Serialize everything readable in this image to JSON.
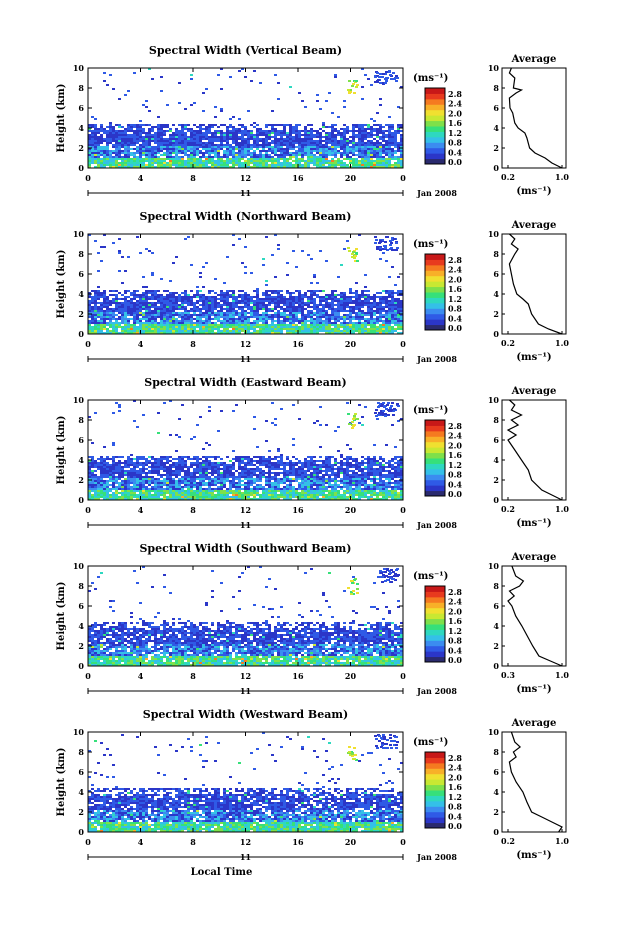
{
  "colors": {
    "scale": [
      "#2a2a6e",
      "#2b36c8",
      "#2f5ae6",
      "#3b8cf0",
      "#34c0e8",
      "#2ed8c0",
      "#36e07a",
      "#7ee04a",
      "#c8e832",
      "#f0e030",
      "#f8b028",
      "#f57a20",
      "#e83a1e",
      "#c81818"
    ]
  },
  "chart_data": [
    {
      "type": "heatmap",
      "title": "Spectral Width (Vertical Beam)",
      "ylabel": "Height (km)",
      "ylim": [
        0,
        10
      ],
      "yticks": [
        "0",
        "2",
        "4",
        "6",
        "8",
        "10"
      ],
      "xlim": [
        0,
        24
      ],
      "xticks": [
        "0",
        "4",
        "8",
        "12",
        "16",
        "20",
        "0"
      ],
      "day_label": "11",
      "date_label": "Jan 2008",
      "colorbar": {
        "unit": "(ms⁻¹)",
        "ticks": [
          "0.0",
          "0.4",
          "0.8",
          "1.2",
          "1.6",
          "2.0",
          "2.4",
          "2.8"
        ],
        "range": [
          0,
          2.8
        ]
      },
      "average": {
        "title": "Average",
        "xlabel": "(ms⁻¹)",
        "xticks": [
          "0.2",
          "1.0"
        ],
        "xlim": [
          0.2,
          1.0
        ],
        "profile": [
          [
            1.0,
            0
          ],
          [
            0.85,
            0.5
          ],
          [
            0.75,
            1
          ],
          [
            0.6,
            1.5
          ],
          [
            0.52,
            2
          ],
          [
            0.48,
            3
          ],
          [
            0.45,
            3.5
          ],
          [
            0.35,
            4
          ],
          [
            0.3,
            4.5
          ],
          [
            0.27,
            5.5
          ],
          [
            0.23,
            6
          ],
          [
            0.22,
            7
          ],
          [
            0.32,
            7.5
          ],
          [
            0.4,
            7.8
          ],
          [
            0.28,
            8
          ],
          [
            0.3,
            9
          ],
          [
            0.22,
            9.5
          ],
          [
            0.25,
            10
          ]
        ]
      },
      "xlabel": ""
    },
    {
      "type": "heatmap",
      "title": "Spectral Width (Northward Beam)",
      "ylabel": "Height (km)",
      "ylim": [
        0,
        10
      ],
      "yticks": [
        "0",
        "2",
        "4",
        "6",
        "8",
        "10"
      ],
      "xlim": [
        0,
        24
      ],
      "xticks": [
        "0",
        "4",
        "8",
        "12",
        "16",
        "20",
        "0"
      ],
      "day_label": "11",
      "date_label": "Jan 2008",
      "colorbar": {
        "unit": "(ms⁻¹)",
        "ticks": [
          "0.0",
          "0.4",
          "0.8",
          "1.2",
          "1.6",
          "2.0",
          "2.4",
          "2.8"
        ],
        "range": [
          0,
          2.8
        ]
      },
      "average": {
        "title": "Average",
        "xlabel": "(ms⁻¹)",
        "xticks": [
          "0.2",
          "1.0"
        ],
        "xlim": [
          0.2,
          1.0
        ],
        "profile": [
          [
            1.0,
            0
          ],
          [
            0.8,
            0.5
          ],
          [
            0.65,
            1
          ],
          [
            0.55,
            2
          ],
          [
            0.5,
            3
          ],
          [
            0.42,
            3.5
          ],
          [
            0.33,
            4
          ],
          [
            0.28,
            5
          ],
          [
            0.25,
            6
          ],
          [
            0.22,
            7
          ],
          [
            0.3,
            8
          ],
          [
            0.35,
            8.5
          ],
          [
            0.25,
            9
          ],
          [
            0.3,
            9.5
          ],
          [
            0.22,
            10
          ]
        ]
      },
      "xlabel": ""
    },
    {
      "type": "heatmap",
      "title": "Spectral Width (Eastward Beam)",
      "ylabel": "Height (km)",
      "ylim": [
        0,
        10
      ],
      "yticks": [
        "0",
        "2",
        "4",
        "6",
        "8",
        "10"
      ],
      "xlim": [
        0,
        24
      ],
      "xticks": [
        "0",
        "4",
        "8",
        "12",
        "16",
        "20",
        "0"
      ],
      "day_label": "11",
      "date_label": "Jan 2008",
      "colorbar": {
        "unit": "(ms⁻¹)",
        "ticks": [
          "0.0",
          "0.4",
          "0.8",
          "1.2",
          "1.6",
          "2.0",
          "2.4",
          "2.8"
        ],
        "range": [
          0,
          2.8
        ]
      },
      "average": {
        "title": "Average",
        "xlabel": "(ms⁻¹)",
        "xticks": [
          "0.2",
          "1.0"
        ],
        "xlim": [
          0.2,
          1.0
        ],
        "profile": [
          [
            1.0,
            0
          ],
          [
            0.85,
            0.5
          ],
          [
            0.7,
            1
          ],
          [
            0.55,
            2
          ],
          [
            0.5,
            3
          ],
          [
            0.4,
            4
          ],
          [
            0.3,
            5
          ],
          [
            0.25,
            5.5
          ],
          [
            0.2,
            6
          ],
          [
            0.32,
            6.5
          ],
          [
            0.2,
            7
          ],
          [
            0.35,
            7.5
          ],
          [
            0.25,
            8
          ],
          [
            0.4,
            8.5
          ],
          [
            0.25,
            9
          ],
          [
            0.3,
            9.5
          ],
          [
            0.22,
            10
          ]
        ]
      },
      "xlabel": ""
    },
    {
      "type": "heatmap",
      "title": "Spectral Width (Southward Beam)",
      "ylabel": "Height (km)",
      "ylim": [
        0,
        10
      ],
      "yticks": [
        "0",
        "2",
        "4",
        "6",
        "8",
        "10"
      ],
      "xlim": [
        0,
        24
      ],
      "xticks": [
        "0",
        "4",
        "8",
        "12",
        "16",
        "20",
        "0"
      ],
      "day_label": "11",
      "date_label": "Jan 2008",
      "colorbar": {
        "unit": "(ms⁻¹)",
        "ticks": [
          "0.0",
          "0.4",
          "0.8",
          "1.2",
          "1.6",
          "2.0",
          "2.4",
          "2.8"
        ],
        "range": [
          0,
          2.8
        ]
      },
      "average": {
        "title": "Average",
        "xlabel": "(ms⁻¹)",
        "xticks": [
          "0.3",
          "1.0"
        ],
        "xlim": [
          0.3,
          1.0
        ],
        "profile": [
          [
            1.0,
            0
          ],
          [
            0.85,
            0.5
          ],
          [
            0.7,
            1
          ],
          [
            0.62,
            2
          ],
          [
            0.55,
            3
          ],
          [
            0.48,
            4
          ],
          [
            0.4,
            5
          ],
          [
            0.35,
            6
          ],
          [
            0.3,
            6.5
          ],
          [
            0.38,
            7
          ],
          [
            0.32,
            7.5
          ],
          [
            0.45,
            8
          ],
          [
            0.5,
            8.5
          ],
          [
            0.4,
            9
          ],
          [
            0.35,
            10
          ]
        ]
      },
      "xlabel": ""
    },
    {
      "type": "heatmap",
      "title": "Spectral Width (Westward Beam)",
      "ylabel": "Height (km)",
      "ylim": [
        0,
        10
      ],
      "yticks": [
        "0",
        "2",
        "4",
        "6",
        "8",
        "10"
      ],
      "xlim": [
        0,
        24
      ],
      "xticks": [
        "0",
        "4",
        "8",
        "12",
        "16",
        "20",
        "0"
      ],
      "day_label": "11",
      "date_label": "Jan 2008",
      "colorbar": {
        "unit": "(ms⁻¹)",
        "ticks": [
          "0.0",
          "0.4",
          "0.8",
          "1.2",
          "1.6",
          "2.0",
          "2.4",
          "2.8"
        ],
        "range": [
          0,
          2.8
        ]
      },
      "average": {
        "title": "Average",
        "xlabel": "(ms⁻¹)",
        "xticks": [
          "0.2",
          "1.0"
        ],
        "xlim": [
          0.2,
          1.0
        ],
        "profile": [
          [
            0.95,
            0
          ],
          [
            1.0,
            0.5
          ],
          [
            0.85,
            1
          ],
          [
            0.7,
            1.5
          ],
          [
            0.55,
            2
          ],
          [
            0.48,
            3
          ],
          [
            0.42,
            4
          ],
          [
            0.32,
            5
          ],
          [
            0.25,
            6
          ],
          [
            0.22,
            7
          ],
          [
            0.32,
            7.5
          ],
          [
            0.28,
            8
          ],
          [
            0.38,
            8.5
          ],
          [
            0.3,
            9
          ],
          [
            0.25,
            10
          ]
        ]
      },
      "xlabel": "Local Time"
    }
  ]
}
